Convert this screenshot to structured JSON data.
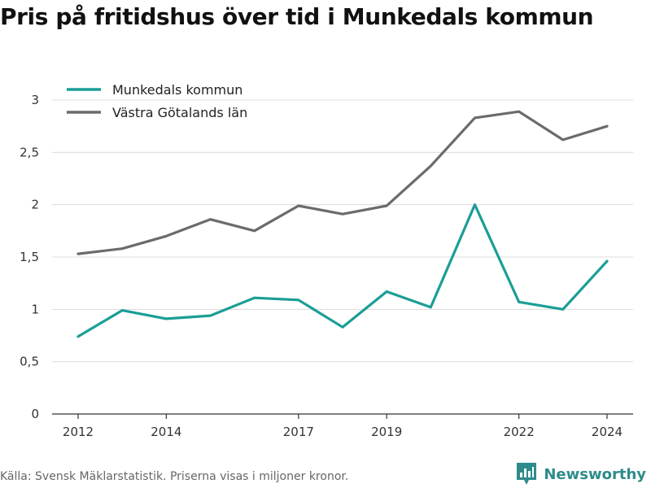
{
  "title": "Pris på fritidshus över tid i Munkedals kommun",
  "source": "Källa: Svensk Mäklarstatistik. Priserna visas i miljoner kronor.",
  "brand": {
    "name": "Newsworthy",
    "icon": "newsworthy-logo-icon",
    "color": "#2e8b8b"
  },
  "chart_data": {
    "type": "line",
    "title": "Pris på fritidshus över tid i Munkedals kommun",
    "xlabel": "",
    "ylabel": "",
    "x": [
      2012,
      2013,
      2014,
      2015,
      2016,
      2017,
      2018,
      2019,
      2020,
      2021,
      2022,
      2023,
      2024
    ],
    "xticks": [
      "2012",
      "2014",
      "2017",
      "2019",
      "2022",
      "2024"
    ],
    "ylim": [
      0,
      3
    ],
    "yticks": [
      {
        "value": 0,
        "label": "0"
      },
      {
        "value": 0.5,
        "label": "0,5"
      },
      {
        "value": 1,
        "label": "1"
      },
      {
        "value": 1.5,
        "label": "1,5"
      },
      {
        "value": 2,
        "label": "2"
      },
      {
        "value": 2.5,
        "label": "2,5"
      },
      {
        "value": 3,
        "label": "3"
      }
    ],
    "grid": true,
    "legend": "top-left",
    "series": [
      {
        "name": "Munkedals kommun",
        "color": "#1a9e96",
        "values": [
          0.74,
          0.99,
          0.91,
          0.94,
          1.11,
          1.09,
          0.83,
          1.17,
          1.02,
          2.0,
          1.07,
          1.0,
          1.46
        ]
      },
      {
        "name": "Västra Götalands län",
        "color": "#6b6b6b",
        "values": [
          1.53,
          1.58,
          1.7,
          1.86,
          1.75,
          1.99,
          1.91,
          1.99,
          2.37,
          2.83,
          2.89,
          2.62,
          2.75
        ]
      }
    ]
  }
}
